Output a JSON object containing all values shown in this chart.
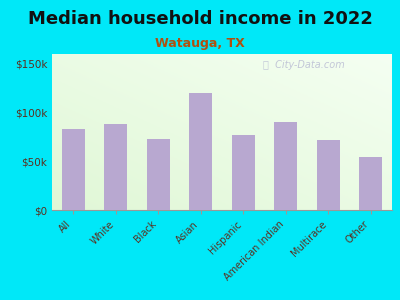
{
  "title": "Median household income in 2022",
  "subtitle": "Watauga, TX",
  "categories": [
    "All",
    "White",
    "Black",
    "Asian",
    "Hispanic",
    "American Indian",
    "Multirace",
    "Other"
  ],
  "values": [
    83000,
    88000,
    73000,
    120000,
    77000,
    90000,
    72000,
    54000
  ],
  "bar_color": "#b8a8d0",
  "title_color": "#111111",
  "subtitle_color": "#b05010",
  "axis_label_color": "#5a3020",
  "tick_label_color": "#5a3020",
  "background_outer": "#00e8f8",
  "watermark": "ⓘ  City-Data.com",
  "ylim": [
    0,
    160000
  ],
  "yticks": [
    0,
    50000,
    100000,
    150000
  ],
  "ytick_labels": [
    "$0",
    "$50k",
    "$100k",
    "$150k"
  ],
  "title_fontsize": 13,
  "subtitle_fontsize": 9,
  "bar_width": 0.55
}
